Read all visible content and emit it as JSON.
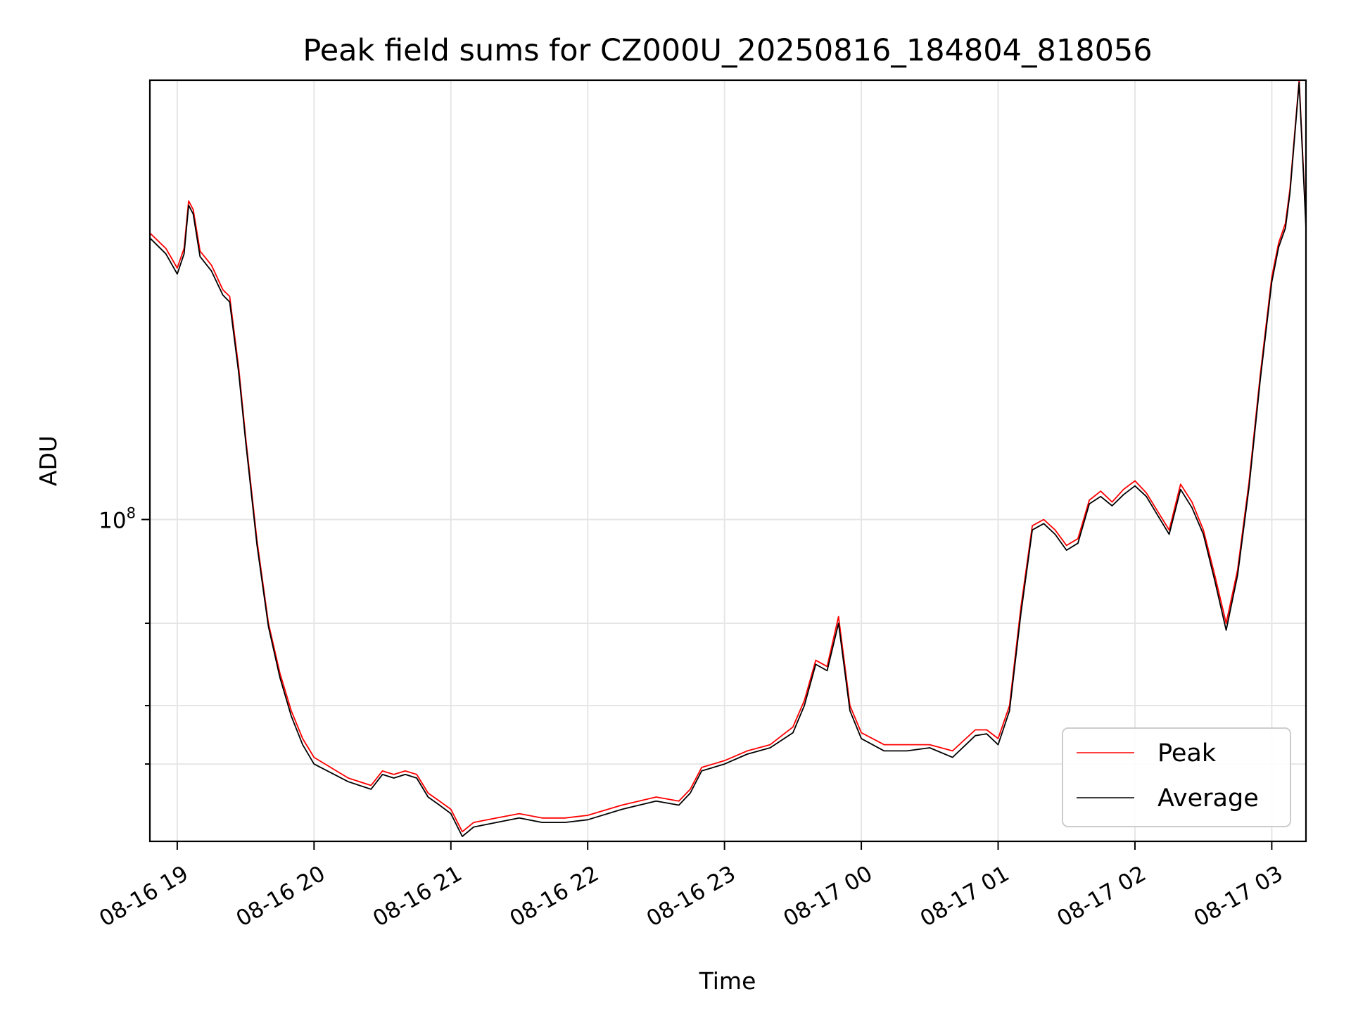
{
  "chart_data": {
    "type": "line",
    "title": "Peak field sums for CZ000U_20250816_184804_818056",
    "xlabel": "Time",
    "ylabel": "ADU",
    "y_scale": "log",
    "grid": true,
    "legend_position": "lower-right",
    "xlim": [
      "2025-08-16 18:48",
      "2025-08-17 03:15"
    ],
    "ylim": [
      20500000,
      870000000
    ],
    "x_ticks": [
      "2025-08-16 19:00",
      "2025-08-16 20:00",
      "2025-08-16 21:00",
      "2025-08-16 22:00",
      "2025-08-16 23:00",
      "2025-08-17 00:00",
      "2025-08-17 01:00",
      "2025-08-17 02:00",
      "2025-08-17 03:00"
    ],
    "x_tick_labels": [
      "08-16 19",
      "08-16 20",
      "08-16 21",
      "08-16 22",
      "08-16 23",
      "08-17 00",
      "08-17 01",
      "08-17 02",
      "08-17 03"
    ],
    "y_major_ticks": [
      100000000
    ],
    "y_major_tick_labels": [
      "10^8"
    ],
    "y_minor_ticks": [
      30000000,
      40000000,
      60000000
    ],
    "x": [
      "2025-08-16 18:48",
      "2025-08-16 18:55",
      "2025-08-16 19:00",
      "2025-08-16 19:03",
      "2025-08-16 19:05",
      "2025-08-16 19:07",
      "2025-08-16 19:10",
      "2025-08-16 19:15",
      "2025-08-16 19:20",
      "2025-08-16 19:23",
      "2025-08-16 19:27",
      "2025-08-16 19:30",
      "2025-08-16 19:35",
      "2025-08-16 19:40",
      "2025-08-16 19:45",
      "2025-08-16 19:50",
      "2025-08-16 19:55",
      "2025-08-16 20:00",
      "2025-08-16 20:15",
      "2025-08-16 20:25",
      "2025-08-16 20:30",
      "2025-08-16 20:35",
      "2025-08-16 20:40",
      "2025-08-16 20:45",
      "2025-08-16 20:50",
      "2025-08-16 20:55",
      "2025-08-16 21:00",
      "2025-08-16 21:05",
      "2025-08-16 21:10",
      "2025-08-16 21:20",
      "2025-08-16 21:30",
      "2025-08-16 21:40",
      "2025-08-16 21:50",
      "2025-08-16 22:00",
      "2025-08-16 22:15",
      "2025-08-16 22:30",
      "2025-08-16 22:40",
      "2025-08-16 22:45",
      "2025-08-16 22:50",
      "2025-08-16 23:00",
      "2025-08-16 23:10",
      "2025-08-16 23:20",
      "2025-08-16 23:30",
      "2025-08-16 23:35",
      "2025-08-16 23:40",
      "2025-08-16 23:45",
      "2025-08-16 23:50",
      "2025-08-16 23:55",
      "2025-08-17 00:00",
      "2025-08-17 00:10",
      "2025-08-17 00:20",
      "2025-08-17 00:30",
      "2025-08-17 00:40",
      "2025-08-17 00:50",
      "2025-08-17 00:55",
      "2025-08-17 01:00",
      "2025-08-17 01:05",
      "2025-08-17 01:10",
      "2025-08-17 01:15",
      "2025-08-17 01:20",
      "2025-08-17 01:25",
      "2025-08-17 01:30",
      "2025-08-17 01:35",
      "2025-08-17 01:40",
      "2025-08-17 01:45",
      "2025-08-17 01:50",
      "2025-08-17 01:55",
      "2025-08-17 02:00",
      "2025-08-17 02:05",
      "2025-08-17 02:10",
      "2025-08-17 02:15",
      "2025-08-17 02:20",
      "2025-08-17 02:25",
      "2025-08-17 02:30",
      "2025-08-17 02:35",
      "2025-08-17 02:40",
      "2025-08-17 02:45",
      "2025-08-17 02:50",
      "2025-08-17 02:55",
      "2025-08-17 03:00",
      "2025-08-17 03:03",
      "2025-08-17 03:06",
      "2025-08-17 03:08",
      "2025-08-17 03:12",
      "2025-08-17 03:15"
    ],
    "series": [
      {
        "name": "Peak",
        "color": "#ff0000",
        "values": [
          410000000,
          380000000,
          345000000,
          380000000,
          480000000,
          460000000,
          375000000,
          350000000,
          310000000,
          300000000,
          210000000,
          150000000,
          90000000,
          60000000,
          47000000,
          39000000,
          34000000,
          31000000,
          28000000,
          27000000,
          29000000,
          28500000,
          29000000,
          28500000,
          26000000,
          25000000,
          24000000,
          21500000,
          22500000,
          23000000,
          23500000,
          23000000,
          23000000,
          23300000,
          24500000,
          25500000,
          25000000,
          26500000,
          29500000,
          30500000,
          32000000,
          33000000,
          36000000,
          41000000,
          50000000,
          48500000,
          62000000,
          40000000,
          35000000,
          33000000,
          33000000,
          33000000,
          32000000,
          35500000,
          35500000,
          34000000,
          40000000,
          65000000,
          97000000,
          100000000,
          95000000,
          88000000,
          91000000,
          110000000,
          115000000,
          109000000,
          116000000,
          121000000,
          114000000,
          104000000,
          95000000,
          119000000,
          109000000,
          95000000,
          76000000,
          60000000,
          78000000,
          120000000,
          205000000,
          330000000,
          390000000,
          430000000,
          510000000,
          870000000,
          430000000
        ]
      },
      {
        "name": "Average",
        "color": "#000000",
        "values": [
          400000000,
          370000000,
          335000000,
          370000000,
          470000000,
          450000000,
          365000000,
          340000000,
          302000000,
          292000000,
          205000000,
          147000000,
          88000000,
          59000000,
          46000000,
          38000000,
          33000000,
          30000000,
          27500000,
          26500000,
          28500000,
          28000000,
          28500000,
          28000000,
          25500000,
          24500000,
          23500000,
          21000000,
          22000000,
          22500000,
          23000000,
          22500000,
          22500000,
          22800000,
          24000000,
          25000000,
          24500000,
          26000000,
          29000000,
          30000000,
          31500000,
          32500000,
          35000000,
          40000000,
          49000000,
          47500000,
          60000000,
          39000000,
          34000000,
          32000000,
          32000000,
          32500000,
          31000000,
          34500000,
          34800000,
          33000000,
          39000000,
          63000000,
          95000000,
          98000000,
          93000000,
          86000000,
          89000000,
          108000000,
          112000000,
          107000000,
          113000000,
          118000000,
          112000000,
          102000000,
          93000000,
          116000000,
          106000000,
          93000000,
          74000000,
          58000000,
          76000000,
          117000000,
          200000000,
          322000000,
          382000000,
          420000000,
          500000000,
          860000000,
          420000000
        ]
      }
    ]
  }
}
